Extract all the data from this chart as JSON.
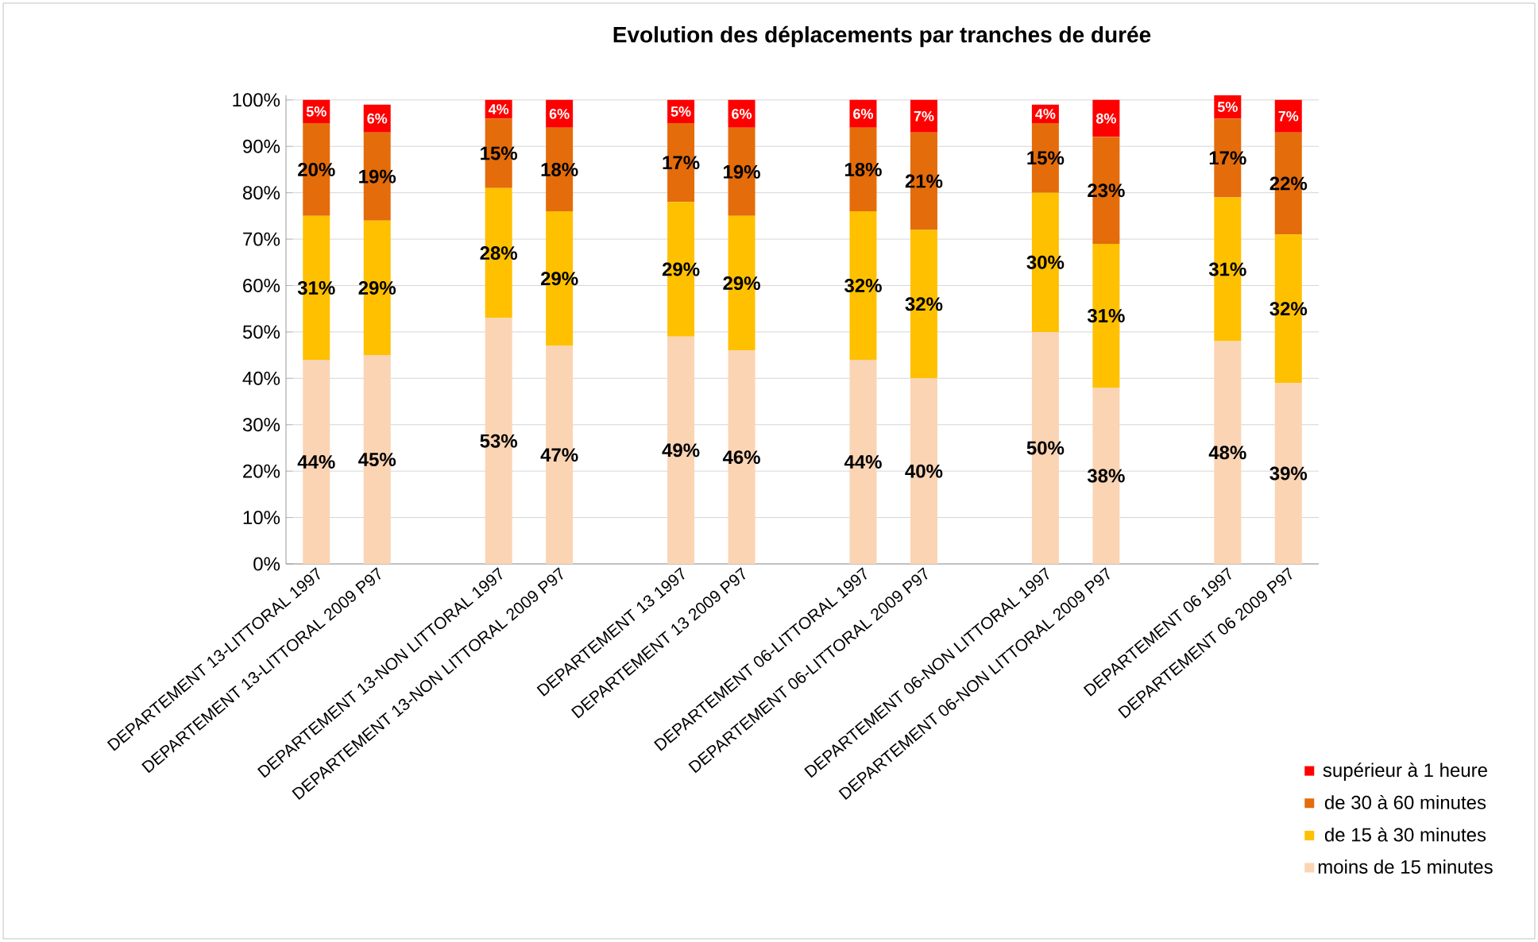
{
  "chart_data": {
    "type": "bar",
    "stacked": true,
    "title": "Evolution des déplacements  par tranches  de durée",
    "categories": [
      "DEPARTEMENT 13-LITTORAL 1997",
      "DEPARTEMENT 13-LITTORAL 2009 P97",
      null,
      "DEPARTEMENT 13-NON LITTORAL 1997",
      "DEPARTEMENT 13-NON LITTORAL 2009 P97",
      null,
      "DEPARTEMENT 13 1997",
      "DEPARTEMENT 13 2009 P97",
      null,
      "DEPARTEMENT 06-LITTORAL 1997",
      "DEPARTEMENT 06-LITTORAL 2009 P97",
      null,
      "DEPARTEMENT 06-NON LITTORAL 1997",
      "DEPARTEMENT 06-NON LITTORAL 2009 P97",
      null,
      "DEPARTEMENT 06 1997",
      "DEPARTEMENT 06 2009 P97"
    ],
    "series": [
      {
        "name": "moins de 15 minutes",
        "color": "#fbd4b4",
        "values": [
          44,
          45,
          null,
          53,
          47,
          null,
          49,
          46,
          null,
          44,
          40,
          null,
          50,
          38,
          null,
          48,
          39
        ],
        "value_labels": [
          "44%",
          "45%",
          null,
          "53%",
          "47%",
          null,
          "49%",
          "46%",
          null,
          "44%",
          "40%",
          null,
          "50%",
          "38%",
          null,
          "48%",
          "39%"
        ]
      },
      {
        "name": "de 15 à 30 minutes",
        "color": "#ffc000",
        "values": [
          31,
          29,
          null,
          28,
          29,
          null,
          29,
          29,
          null,
          32,
          32,
          null,
          30,
          31,
          null,
          31,
          32
        ],
        "value_labels": [
          "31%",
          "29%",
          null,
          "28%",
          "29%",
          null,
          "29%",
          "29%",
          null,
          "32%",
          "32%",
          null,
          "30%",
          "31%",
          null,
          "31%",
          "32%"
        ]
      },
      {
        "name": "de 30 à 60 minutes",
        "color": "#e46c0a",
        "values": [
          20,
          19,
          null,
          15,
          18,
          null,
          17,
          19,
          null,
          18,
          21,
          null,
          15,
          23,
          null,
          17,
          22
        ],
        "value_labels": [
          "20%",
          "19%",
          null,
          "15%",
          "18%",
          null,
          "17%",
          "19%",
          null,
          "18%",
          "21%",
          null,
          "15%",
          "23%",
          null,
          "17%",
          "22%"
        ]
      },
      {
        "name": "supérieur à 1 heure",
        "color": "#ff0000",
        "values": [
          5,
          6,
          null,
          4,
          6,
          null,
          5,
          6,
          null,
          6,
          7,
          null,
          4,
          8,
          null,
          5,
          7
        ],
        "value_labels": [
          "5%",
          "6%",
          null,
          "4%",
          "6%",
          null,
          "5%",
          "6%",
          null,
          "6%",
          "7%",
          null,
          "4%",
          "8%",
          null,
          "5%",
          "7%"
        ]
      }
    ],
    "ylim": [
      0,
      101
    ],
    "yticks": [
      {
        "value": 0,
        "label": "0%"
      },
      {
        "value": 10,
        "label": "10%"
      },
      {
        "value": 20,
        "label": "20%"
      },
      {
        "value": 30,
        "label": "30%"
      },
      {
        "value": 40,
        "label": "40%"
      },
      {
        "value": 50,
        "label": "50%"
      },
      {
        "value": 60,
        "label": "60%"
      },
      {
        "value": 70,
        "label": "70%"
      },
      {
        "value": 80,
        "label": "80%"
      },
      {
        "value": 90,
        "label": "90%"
      },
      {
        "value": 100,
        "label": "100%"
      }
    ],
    "grid": "y",
    "legend": "bottom right"
  }
}
